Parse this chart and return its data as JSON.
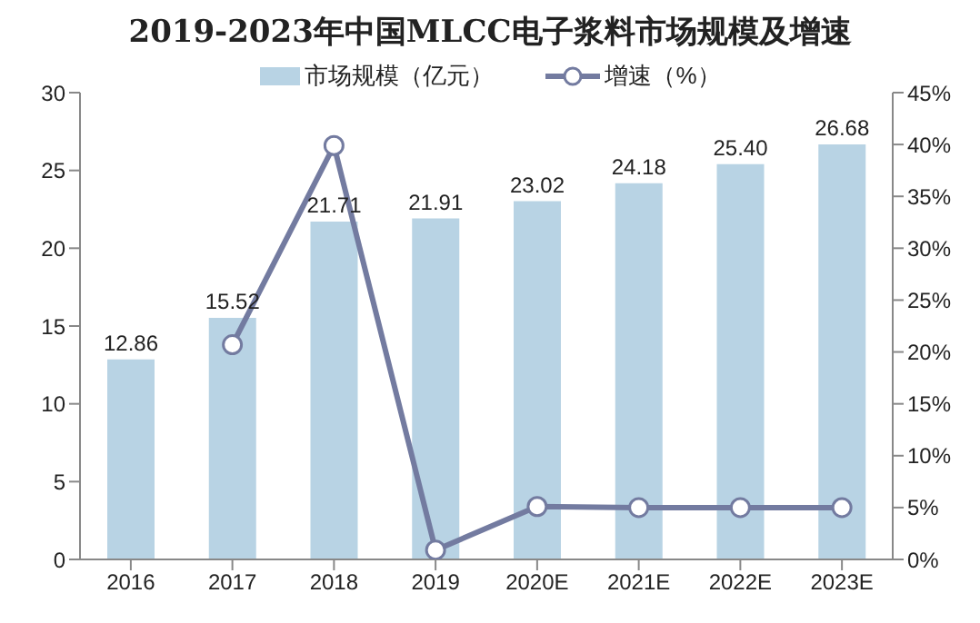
{
  "chart_data": {
    "type": "bar",
    "title": "2019-2023年中国MLCC电子浆料市场规模及增速",
    "categories": [
      "2016",
      "2017",
      "2018",
      "2019",
      "2020E",
      "2021E",
      "2022E",
      "2023E"
    ],
    "series": [
      {
        "name": "市场规模（亿元）",
        "color": "#b8d3e4",
        "values": [
          12.86,
          15.52,
          21.71,
          21.91,
          23.02,
          24.18,
          25.4,
          26.68
        ],
        "value_labels": [
          "12.86",
          "15.52",
          "21.71",
          "21.91",
          "23.02",
          "24.18",
          "25.40",
          "26.68"
        ]
      },
      {
        "name": "增速（%）",
        "type": "line",
        "axis": "y2",
        "color": "#737ba0",
        "marker": "circle",
        "values": [
          null,
          20.7,
          39.9,
          0.9,
          5.1,
          5.0,
          5.0,
          5.0
        ]
      }
    ],
    "ylim": [
      0,
      30
    ],
    "yticks": [
      0,
      5,
      10,
      15,
      20,
      25,
      30
    ],
    "y2lim": [
      0,
      45
    ],
    "y2ticks": [
      {
        "value": 0,
        "label": "0%"
      },
      {
        "value": 5,
        "label": "5%"
      },
      {
        "value": 10,
        "label": "10%"
      },
      {
        "value": 15,
        "label": "15%"
      },
      {
        "value": 20,
        "label": "20%"
      },
      {
        "value": 25,
        "label": "25%"
      },
      {
        "value": 30,
        "label": "30%"
      },
      {
        "value": 35,
        "label": "35%"
      },
      {
        "value": 40,
        "label": "40%"
      },
      {
        "value": 45,
        "label": "45%"
      }
    ],
    "grid": false,
    "legend": "top"
  }
}
